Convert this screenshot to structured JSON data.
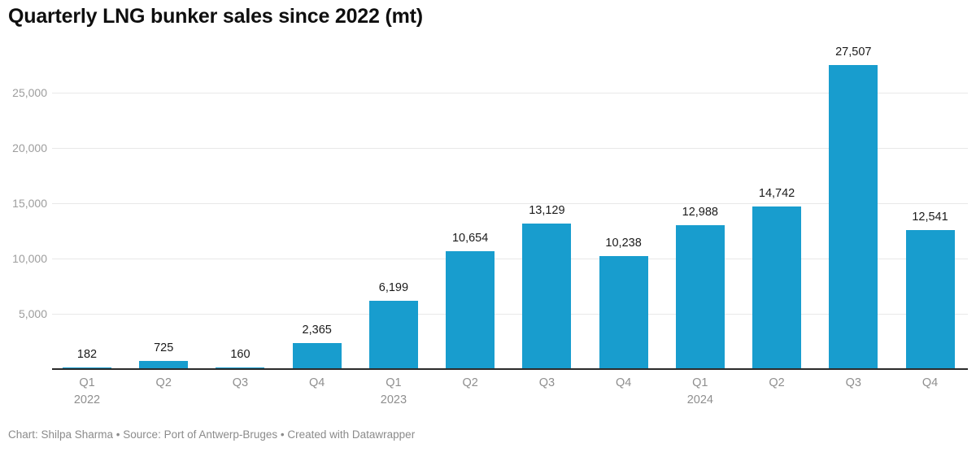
{
  "header": {
    "title": "Quarterly LNG bunker sales since 2022 (mt)"
  },
  "chart_data": {
    "type": "bar",
    "title": "Quarterly LNG bunker sales since 2022 (mt)",
    "categories": [
      "Q1",
      "Q2",
      "Q3",
      "Q4",
      "Q1",
      "Q2",
      "Q3",
      "Q4",
      "Q1",
      "Q2",
      "Q3",
      "Q4"
    ],
    "year_labels": [
      {
        "index": 0,
        "label": "2022"
      },
      {
        "index": 4,
        "label": "2023"
      },
      {
        "index": 8,
        "label": "2024"
      }
    ],
    "values": [
      182,
      725,
      160,
      2365,
      6199,
      10654,
      13129,
      10238,
      12988,
      14742,
      27507,
      12541
    ],
    "value_labels": [
      "182",
      "725",
      "160",
      "2,365",
      "6,199",
      "10,654",
      "13,129",
      "10,238",
      "12,988",
      "14,742",
      "27,507",
      "12,541"
    ],
    "y_ticks": [
      5000,
      10000,
      15000,
      20000,
      25000
    ],
    "y_tick_labels": [
      "5,000",
      "10,000",
      "15,000",
      "20,000",
      "25,000"
    ],
    "ylim": [
      0,
      29000
    ],
    "xlabel": "",
    "ylabel": "",
    "grid": true,
    "legend_position": "none",
    "bar_color": "#189dce"
  },
  "footer": {
    "text": "Chart: Shilpa Sharma • Source: Port of Antwerp-Bruges • Created with Datawrapper"
  }
}
